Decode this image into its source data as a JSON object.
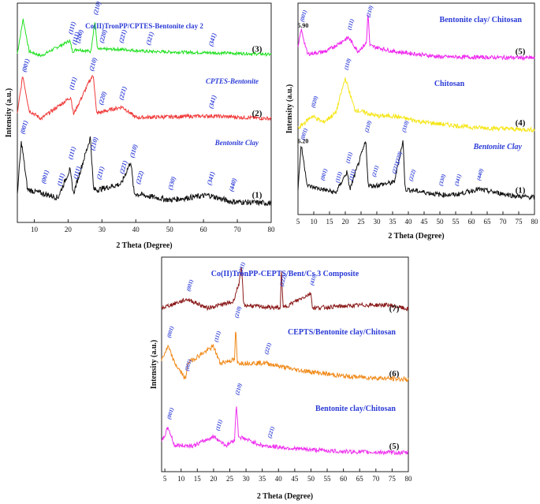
{
  "chart_data": [
    {
      "type": "line",
      "xlabel": "2 Theta (Degree)",
      "ylabel": "Intensity (a.u.)",
      "xlim": [
        5,
        80
      ],
      "xticks": [
        "10",
        "20",
        "30",
        "40",
        "50",
        "60",
        "70",
        "80"
      ],
      "series": [
        {
          "index": "(3)",
          "name": "Co(II)TronPP/CPTES-Bentonite clay 2",
          "color": "#22e022",
          "style": "normal",
          "peaks": [
            {
              "x": 20.5,
              "label": "(111)"
            },
            {
              "x": 21.6,
              "label": "(111)"
            },
            {
              "x": 22.7,
              "label": "(200)"
            },
            {
              "x": 27.9,
              "label": "(210)"
            },
            {
              "x": 29.7,
              "label": "(220)"
            },
            {
              "x": 35.5,
              "label": "(221)"
            },
            {
              "x": 43.5,
              "label": "(321)"
            },
            {
              "x": 62,
              "label": "(341)"
            }
          ],
          "profile": [
            [
              5,
              0.2
            ],
            [
              6.7,
              1.0
            ],
            [
              8.5,
              0.25
            ],
            [
              12,
              0.15
            ],
            [
              20.5,
              0.5
            ],
            [
              21.3,
              0.25
            ],
            [
              22.5,
              0.3
            ],
            [
              26.7,
              0.25
            ],
            [
              27.9,
              0.95
            ],
            [
              28.7,
              0.3
            ],
            [
              35.5,
              0.3
            ],
            [
              43.5,
              0.25
            ],
            [
              62,
              0.22
            ],
            [
              74,
              0.2
            ],
            [
              80,
              0.18
            ]
          ]
        },
        {
          "index": "(2)",
          "name": "CPTES-Bentonite",
          "color": "#f03a3a",
          "style": "italic",
          "peaks": [
            {
              "x": 6.8,
              "label": "(001)"
            },
            {
              "x": 20.8,
              "label": "(111)"
            },
            {
              "x": 26.7,
              "label": "(210)"
            },
            {
              "x": 29.5,
              "label": "(220)"
            },
            {
              "x": 35.5,
              "label": "(221)"
            },
            {
              "x": 62,
              "label": "(341)"
            }
          ],
          "profile": [
            [
              5,
              0.3
            ],
            [
              6.6,
              1.0
            ],
            [
              8.5,
              0.35
            ],
            [
              12,
              0.2
            ],
            [
              20.8,
              0.6
            ],
            [
              21.6,
              0.28
            ],
            [
              26.7,
              0.95
            ],
            [
              27.5,
              1.0
            ],
            [
              28.4,
              0.3
            ],
            [
              36,
              0.42
            ],
            [
              40,
              0.22
            ],
            [
              62,
              0.25
            ],
            [
              80,
              0.2
            ]
          ]
        },
        {
          "index": "(1)",
          "name": "Bentonite Clay",
          "color": "#111111",
          "style": "italic",
          "peaks": [
            {
              "x": 6.3,
              "label": "(001)"
            },
            {
              "x": 12.5,
              "label": "(001)"
            },
            {
              "x": 17.2,
              "label": "(111)"
            },
            {
              "x": 20.5,
              "label": "(111)"
            },
            {
              "x": 22,
              "label": "(111)"
            },
            {
              "x": 27,
              "label": "(210)"
            },
            {
              "x": 28.9,
              "label": "(211)"
            },
            {
              "x": 35.7,
              "label": "(221)"
            },
            {
              "x": 38.7,
              "label": "(310)"
            },
            {
              "x": 40.5,
              "label": "(222)"
            },
            {
              "x": 50,
              "label": "(330)"
            },
            {
              "x": 61.5,
              "label": "(341)"
            },
            {
              "x": 68,
              "label": "(440)"
            }
          ],
          "profile": [
            [
              5,
              0.3
            ],
            [
              6.2,
              0.95
            ],
            [
              8,
              0.35
            ],
            [
              12.5,
              0.3
            ],
            [
              17,
              0.25
            ],
            [
              20.5,
              0.6
            ],
            [
              21.6,
              0.3
            ],
            [
              26.6,
              1.0
            ],
            [
              27.5,
              0.35
            ],
            [
              29,
              0.35
            ],
            [
              35.7,
              0.42
            ],
            [
              38.5,
              0.7
            ],
            [
              39.5,
              0.3
            ],
            [
              50,
              0.22
            ],
            [
              61.5,
              0.28
            ],
            [
              68,
              0.2
            ],
            [
              80,
              0.18
            ]
          ]
        }
      ]
    },
    {
      "type": "line",
      "xlabel": "2 Theta (Degree)",
      "ylabel": "Intensity (a.u.)",
      "xlim": [
        5,
        80
      ],
      "xticks": [
        "5",
        "10",
        "15",
        "20",
        "25",
        "30",
        "35",
        "40",
        "45",
        "50",
        "55",
        "60",
        "65",
        "70",
        "75",
        "80"
      ],
      "series": [
        {
          "index": "(5)",
          "name": "Bentonite clay/ Chitosan",
          "color": "#ee22ee",
          "d_value": "5.90",
          "peaks": [
            {
              "x": 6,
              "label": "(001)"
            },
            {
              "x": 21,
              "label": "(111)"
            },
            {
              "x": 27,
              "label": "(210)"
            }
          ],
          "profile": [
            [
              5,
              0.35
            ],
            [
              6,
              0.7
            ],
            [
              8,
              0.25
            ],
            [
              14,
              0.3
            ],
            [
              21,
              0.55
            ],
            [
              24,
              0.3
            ],
            [
              26.7,
              0.45
            ],
            [
              27.2,
              1.0
            ],
            [
              27.8,
              0.4
            ],
            [
              35,
              0.3
            ],
            [
              50,
              0.2
            ],
            [
              80,
              0.18
            ]
          ]
        },
        {
          "index": "(4)",
          "name": "Chitosan",
          "color": "#f5e61a",
          "peaks": [
            {
              "x": 9.5,
              "label": "(020)"
            },
            {
              "x": 20,
              "label": "(110)"
            }
          ],
          "profile": [
            [
              5,
              0.2
            ],
            [
              9.5,
              0.4
            ],
            [
              13,
              0.3
            ],
            [
              17,
              0.45
            ],
            [
              20,
              1.0
            ],
            [
              23,
              0.5
            ],
            [
              30,
              0.4
            ],
            [
              35,
              0.4
            ],
            [
              45,
              0.3
            ],
            [
              60,
              0.22
            ],
            [
              80,
              0.18
            ]
          ]
        },
        {
          "index": "(1)",
          "name": "Bentonite Clay",
          "color": "#111111",
          "d_value": "6.20",
          "peaks": [
            {
              "x": 6.2,
              "label": "(001)"
            },
            {
              "x": 12.5,
              "label": "(001)"
            },
            {
              "x": 17.2,
              "label": "(111)"
            },
            {
              "x": 20.5,
              "label": "(111)"
            },
            {
              "x": 21.5,
              "label": "(111)"
            },
            {
              "x": 26.5,
              "label": "(210)"
            },
            {
              "x": 28.8,
              "label": "(211)"
            },
            {
              "x": 35.2,
              "label": "(221)"
            },
            {
              "x": 36.2,
              "label": "(220)"
            },
            {
              "x": 38.3,
              "label": "(310)"
            },
            {
              "x": 40.5,
              "label": "(222)"
            },
            {
              "x": 50,
              "label": "(330)"
            },
            {
              "x": 55,
              "label": "(341)"
            },
            {
              "x": 62,
              "label": "(440)"
            }
          ],
          "profile": [
            [
              5,
              0.3
            ],
            [
              6,
              0.95
            ],
            [
              8,
              0.35
            ],
            [
              12.5,
              0.3
            ],
            [
              17,
              0.25
            ],
            [
              20.5,
              0.55
            ],
            [
              21.5,
              0.3
            ],
            [
              26.5,
              1.0
            ],
            [
              27.3,
              0.35
            ],
            [
              28.8,
              0.35
            ],
            [
              35.5,
              0.4
            ],
            [
              38.3,
              1.0
            ],
            [
              39,
              0.3
            ],
            [
              50,
              0.22
            ],
            [
              55,
              0.22
            ],
            [
              62,
              0.3
            ],
            [
              74,
              0.2
            ],
            [
              80,
              0.18
            ]
          ]
        }
      ]
    },
    {
      "type": "line",
      "xlabel": "2 Theta (Degree)",
      "ylabel": "Intensity (a.u.)",
      "xlim": [
        4,
        80
      ],
      "xticks": [
        "5",
        "10",
        "15",
        "20",
        "25",
        "30",
        "35",
        "40",
        "45",
        "50",
        "55",
        "60",
        "65",
        "70",
        "75",
        "80"
      ],
      "series": [
        {
          "index": "(7)",
          "name": "Co(II)TronPP-CEPTS/Bent/Cs 3 Composite",
          "color": "#8b1a1a",
          "peaks": [
            {
              "x": 12,
              "label": "(001)"
            },
            {
              "x": 28,
              "label": "(211)"
            },
            {
              "x": 40.7,
              "label": "(222)"
            },
            {
              "x": 50,
              "label": "(410)"
            }
          ],
          "profile": [
            [
              4,
              0.3
            ],
            [
              12,
              0.45
            ],
            [
              18,
              0.3
            ],
            [
              26,
              0.4
            ],
            [
              28,
              0.75
            ],
            [
              28.6,
              1.0
            ],
            [
              29.3,
              0.35
            ],
            [
              35,
              0.32
            ],
            [
              40.6,
              0.3
            ],
            [
              40.9,
              1.0
            ],
            [
              41.4,
              0.3
            ],
            [
              50,
              0.55
            ],
            [
              50.5,
              0.3
            ],
            [
              66,
              0.35
            ],
            [
              74,
              0.35
            ],
            [
              80,
              0.28
            ]
          ]
        },
        {
          "index": "(6)",
          "name": "CEPTS/Bentonite clay/Chitosan",
          "color": "#f08a1a",
          "peaks": [
            {
              "x": 6,
              "label": "(001)"
            },
            {
              "x": 11.5,
              "label": "(001)"
            },
            {
              "x": 20.5,
              "label": "(111)"
            },
            {
              "x": 26.8,
              "label": "(210)"
            },
            {
              "x": 36,
              "label": "(221)"
            }
          ],
          "profile": [
            [
              4,
              0.5
            ],
            [
              6,
              0.7
            ],
            [
              8,
              0.45
            ],
            [
              11.5,
              0.2
            ],
            [
              12,
              0.45
            ],
            [
              20,
              0.7
            ],
            [
              22,
              0.45
            ],
            [
              26.5,
              0.5
            ],
            [
              26.8,
              1.0
            ],
            [
              27.3,
              0.45
            ],
            [
              36,
              0.45
            ],
            [
              45,
              0.35
            ],
            [
              60,
              0.25
            ],
            [
              80,
              0.2
            ]
          ]
        },
        {
          "index": "(5)",
          "name": "Bentonite clay/Chitosan",
          "color": "#ee33ee",
          "peaks": [
            {
              "x": 6,
              "label": "(001)"
            },
            {
              "x": 21,
              "label": "(111)"
            },
            {
              "x": 27,
              "label": "(210)"
            },
            {
              "x": 37,
              "label": "(221)"
            }
          ],
          "profile": [
            [
              4,
              0.35
            ],
            [
              6,
              0.6
            ],
            [
              8,
              0.3
            ],
            [
              14,
              0.3
            ],
            [
              20,
              0.45
            ],
            [
              24,
              0.3
            ],
            [
              26.5,
              0.4
            ],
            [
              27,
              1.0
            ],
            [
              27.7,
              0.45
            ],
            [
              35,
              0.3
            ],
            [
              45,
              0.25
            ],
            [
              60,
              0.2
            ],
            [
              80,
              0.18
            ]
          ]
        }
      ]
    }
  ]
}
